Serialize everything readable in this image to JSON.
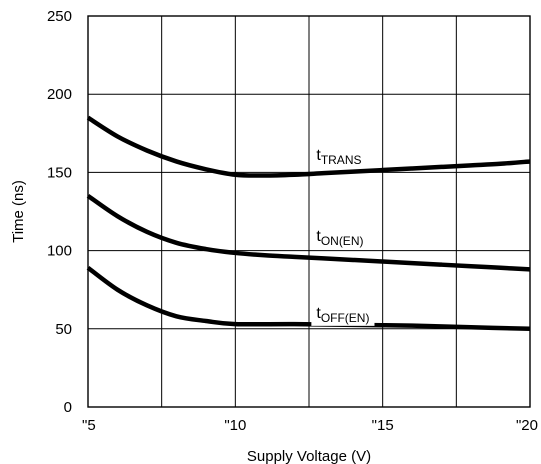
{
  "chart_data": {
    "type": "line",
    "xlabel": "Supply Voltage (V)",
    "ylabel": "Time (ns)",
    "xlim": [
      5,
      20
    ],
    "ylim": [
      0,
      250
    ],
    "x_ticks": [
      "\"5",
      "\"10",
      "\"15",
      "\"20"
    ],
    "y_ticks": [
      "0",
      "50",
      "100",
      "150",
      "200",
      "250"
    ],
    "grid": true,
    "series": [
      {
        "name": "tTRANS",
        "label_main": "t",
        "label_sub": "TRANS",
        "label_at": [
          12.75,
          158
        ],
        "x": [
          5,
          6,
          7,
          8,
          9,
          10,
          11,
          12,
          13,
          14,
          15,
          16,
          17,
          18,
          19,
          20
        ],
        "values": [
          185,
          173,
          164,
          157,
          152,
          148.5,
          148,
          148.5,
          149.5,
          150.5,
          151.5,
          152.5,
          153.5,
          154.5,
          155.5,
          157
        ]
      },
      {
        "name": "tON(EN)",
        "label_main": "t",
        "label_sub": "ON(EN)",
        "label_at": [
          12.75,
          106
        ],
        "x": [
          5,
          6,
          7,
          8,
          9,
          10,
          11,
          12,
          13,
          14,
          15,
          16,
          17,
          18,
          19,
          20
        ],
        "values": [
          135,
          122,
          112,
          105,
          101,
          98.5,
          97,
          96,
          95,
          94,
          93,
          92,
          91,
          90,
          89,
          88
        ]
      },
      {
        "name": "tOFF(EN)",
        "label_main": "t",
        "label_sub": "OFF(EN)",
        "label_at": [
          12.75,
          57
        ],
        "x": [
          5,
          6,
          7,
          8,
          9,
          10,
          12,
          14,
          16,
          18,
          20
        ],
        "values": [
          89,
          75,
          65,
          58,
          55,
          53,
          53,
          52.5,
          52,
          51,
          50
        ]
      }
    ]
  }
}
